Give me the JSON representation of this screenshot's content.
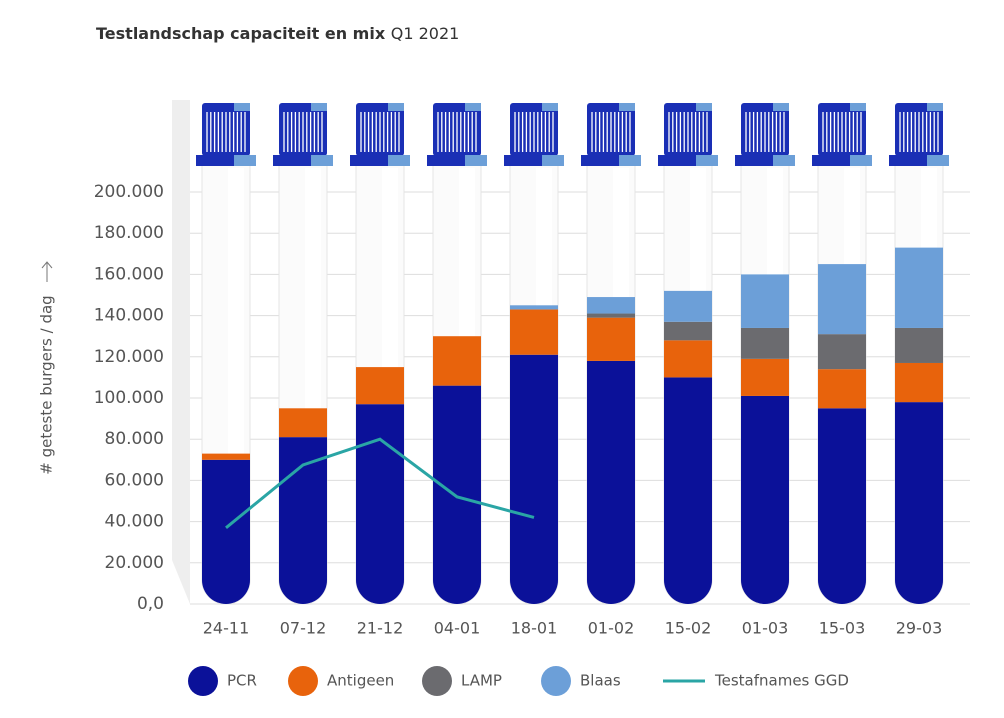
{
  "chart_data": {
    "type": "bar",
    "title": "Testlandschap capaciteit en mix",
    "subtitle": "Q1 2021",
    "y_label": "# geteste burgers / dag",
    "categories": [
      "24-11",
      "07-12",
      "21-12",
      "04-01",
      "18-01",
      "01-02",
      "15-02",
      "01-03",
      "15-03",
      "29-03"
    ],
    "series": [
      {
        "name": "PCR",
        "type": "bar",
        "color": "#0b1199",
        "values": [
          70000,
          81000,
          97000,
          106000,
          121000,
          118000,
          110000,
          101000,
          95000,
          98000
        ]
      },
      {
        "name": "Antigeen",
        "type": "bar",
        "color": "#e8630c",
        "values": [
          3000,
          14000,
          18000,
          24000,
          22000,
          21000,
          18000,
          18000,
          19000,
          19000
        ]
      },
      {
        "name": "LAMP",
        "type": "bar",
        "color": "#6b6b6f",
        "values": [
          0,
          0,
          0,
          0,
          0,
          2000,
          9000,
          15000,
          17000,
          17000
        ]
      },
      {
        "name": "Blaas",
        "type": "bar",
        "color": "#6c9fd8",
        "values": [
          0,
          0,
          0,
          0,
          2000,
          8000,
          15000,
          26000,
          34000,
          39000
        ]
      },
      {
        "name": "Testafnames GGD",
        "type": "line",
        "color": "#2aa5a5",
        "values": [
          37000,
          67500,
          80000,
          52000,
          42000,
          null,
          null,
          null,
          null,
          null
        ]
      }
    ],
    "ylim": [
      0,
      200000
    ],
    "yticks": [
      {
        "value": 0,
        "label": "0,0"
      },
      {
        "value": 20000,
        "label": "20.000"
      },
      {
        "value": 40000,
        "label": "40.000"
      },
      {
        "value": 60000,
        "label": "60.000"
      },
      {
        "value": 80000,
        "label": "80.000"
      },
      {
        "value": 100000,
        "label": "100.000"
      },
      {
        "value": 120000,
        "label": "120.000"
      },
      {
        "value": 140000,
        "label": "140.000"
      },
      {
        "value": 160000,
        "label": "160.000"
      },
      {
        "value": 180000,
        "label": "180.000"
      },
      {
        "value": 200000,
        "label": "200.000"
      }
    ],
    "grid": true
  }
}
